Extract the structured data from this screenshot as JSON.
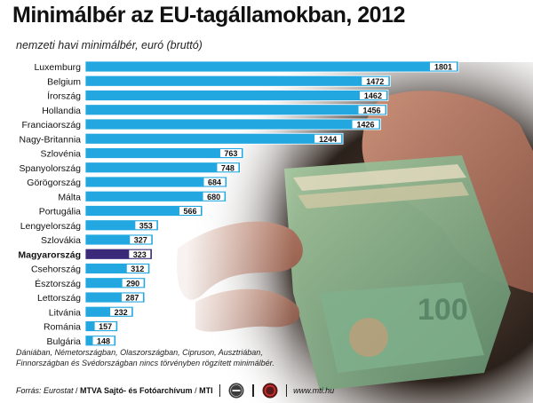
{
  "title": "Minimálbér az EU-tagállamokban, 2012",
  "subtitle": "nemzeti havi minimálbér, euró (bruttó)",
  "note": "Dániában, Németországban, Olaszországban, Cipruson, Ausztriában, Finnországban és Svédországban nincs törvényben rögzített minimálbér.",
  "footer": {
    "source_label": "Forrás: Eurostat",
    "agency": "MTVA Sajtó- és Fotóarchívum",
    "agency_short": "MTI",
    "website": "www.mti.hu",
    "logo1_icon": "mtva-logo-icon",
    "logo2_icon": "mti-logo-icon"
  },
  "colors": {
    "bar": "#22a7e0",
    "highlight_bar": "#3b2a7a",
    "label_bg": "#ffffff"
  },
  "chart_data": {
    "type": "bar",
    "orientation": "horizontal",
    "title": "Minimálbér az EU-tagállamokban, 2012",
    "subtitle": "nemzeti havi minimálbér, euró (bruttó)",
    "categories": [
      "Luxemburg",
      "Belgium",
      "Írország",
      "Hollandia",
      "Franciaország",
      "Nagy-Britannia",
      "Szlovénia",
      "Spanyolország",
      "Görögország",
      "Málta",
      "Portugália",
      "Lengyelország",
      "Szlovákia",
      "Magyarország",
      "Csehország",
      "Észtország",
      "Lettország",
      "Litvánia",
      "Románia",
      "Bulgária"
    ],
    "values": [
      1801,
      1472,
      1462,
      1456,
      1426,
      1244,
      763,
      748,
      684,
      680,
      566,
      353,
      327,
      323,
      312,
      290,
      287,
      232,
      157,
      148
    ],
    "highlight": "Magyarország",
    "xlim": [
      0,
      1801
    ],
    "grid": false,
    "legend": "none"
  }
}
